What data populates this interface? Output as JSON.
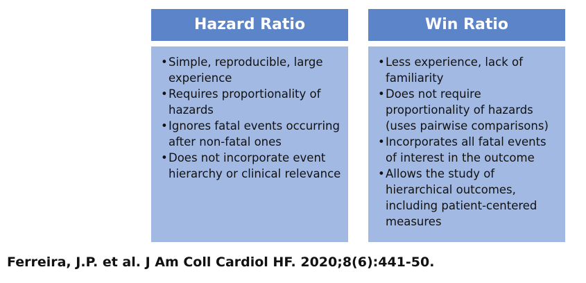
{
  "panels": [
    {
      "title": "Hazard Ratio",
      "bullets": [
        "Simple, reproducible, large experience",
        "Requires proportionality of hazards",
        "Ignores fatal events occurring after non-fatal ones",
        "Does not incorporate event hierarchy or clinical relevance"
      ]
    },
    {
      "title": "Win Ratio",
      "bullets": [
        "Less experience, lack of familiarity",
        "Does not require proportionality of hazards (uses pairwise comparisons)",
        "Incorporates all fatal events of interest in the outcome",
        "Allows the study of hierarchical outcomes, including patient-centered measures"
      ]
    }
  ],
  "citation": "Ferreira, J.P. et al. J Am Coll Cardiol HF. 2020;8(6):441-50.",
  "colors": {
    "header_bg": "#5b84c9",
    "body_bg": "#a2b9e3",
    "header_text": "#ffffff"
  }
}
